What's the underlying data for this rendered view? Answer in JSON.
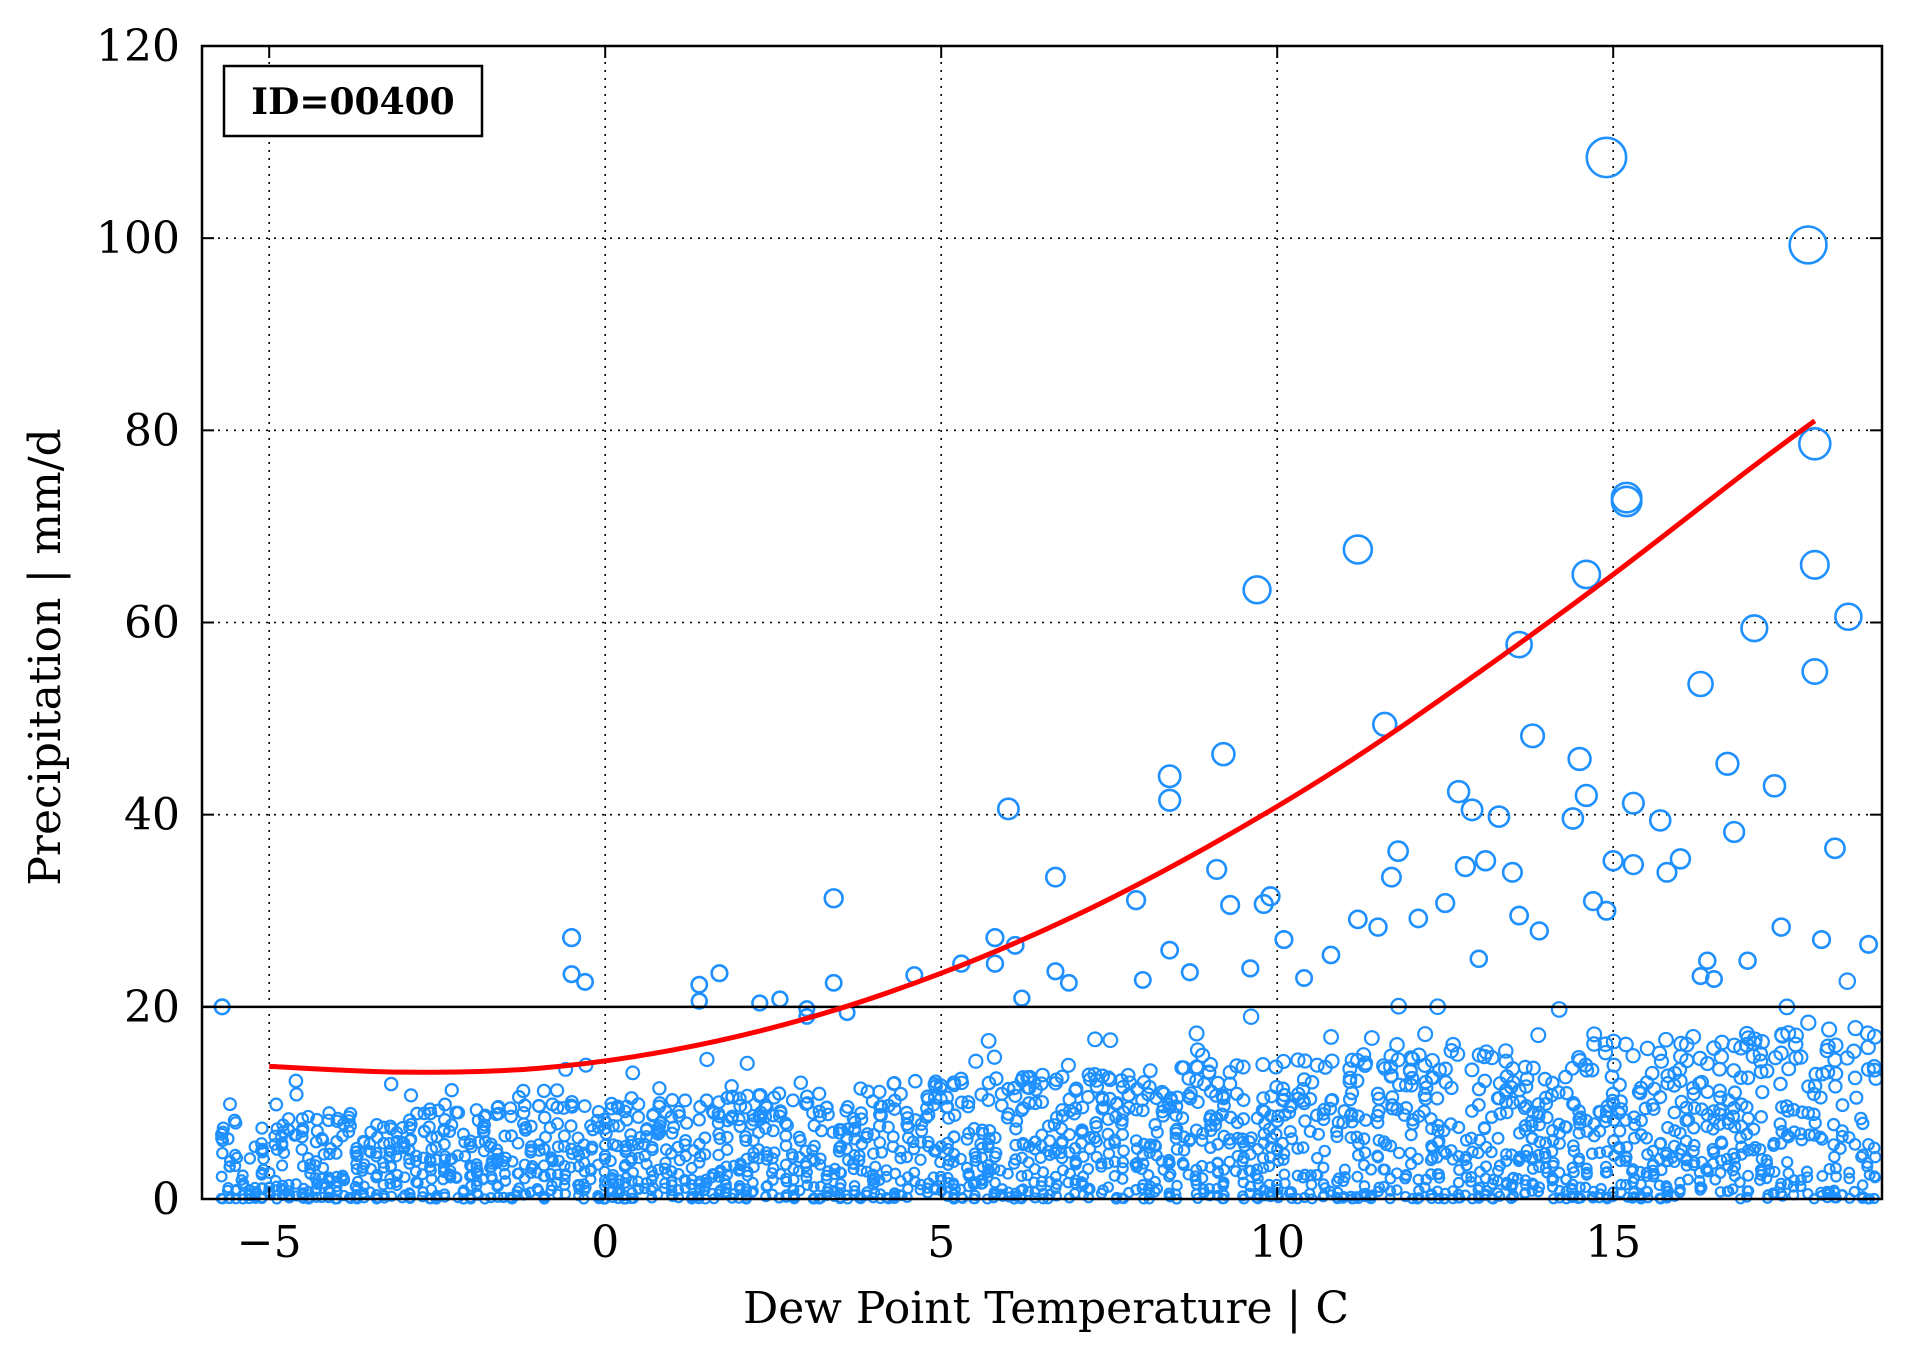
{
  "chart_data": {
    "type": "scatter",
    "title": "",
    "xlabel": "Dew Point Temperature | C",
    "ylabel": "Precipitation | mm/d",
    "xlim": [
      -6,
      19
    ],
    "ylim": [
      0,
      120
    ],
    "xticks": [
      -5,
      0,
      5,
      10,
      15
    ],
    "yticks": [
      0,
      20,
      40,
      60,
      80,
      100,
      120
    ],
    "xtick_labels": [
      "−5",
      "0",
      "5",
      "10",
      "15"
    ],
    "ytick_labels": [
      "0",
      "20",
      "40",
      "60",
      "80",
      "100",
      "120"
    ],
    "grid": true,
    "annotation": "ID=00400",
    "annotation_position": "top-left",
    "threshold_line": {
      "y": 20,
      "color": "#000000"
    },
    "marker_color": "#1e90ff",
    "fit_color": "#ff0000",
    "fit_curve": {
      "x": [
        -5,
        -3,
        -1,
        1,
        3,
        5,
        7,
        9,
        11,
        13,
        15,
        17,
        18
      ],
      "y": [
        13.8,
        13.2,
        13.6,
        15.5,
        18.8,
        23.5,
        29.5,
        36.8,
        45.2,
        54.8,
        65.0,
        75.8,
        81.0
      ]
    },
    "points": {
      "x": [
        -5.7,
        -0.5,
        -0.5,
        -0.3,
        1.4,
        1.4,
        1.7,
        2.3,
        2.6,
        3.0,
        3.0,
        3.4,
        3.4,
        3.6,
        4.6,
        5.3,
        5.8,
        5.8,
        6.0,
        6.1,
        6.2,
        6.7,
        6.7,
        6.9,
        7.9,
        8.0,
        8.4,
        8.4,
        8.4,
        8.7,
        9.1,
        9.2,
        9.3,
        9.6,
        9.7,
        9.8,
        9.9,
        10.1,
        10.4,
        10.8,
        11.2,
        11.2,
        11.5,
        11.6,
        11.7,
        11.8,
        12.1,
        12.5,
        12.7,
        12.8,
        12.9,
        13.0,
        13.1,
        13.3,
        13.5,
        13.6,
        13.6,
        13.8,
        13.9,
        14.4,
        14.5,
        14.6,
        14.6,
        14.7,
        14.9,
        14.9,
        15.0,
        15.2,
        15.2,
        15.3,
        15.3,
        15.7,
        15.8,
        16.0,
        16.3,
        16.3,
        16.4,
        16.5,
        16.7,
        16.8,
        17.0,
        17.1,
        17.4,
        17.5,
        17.9,
        18.0,
        18.0,
        18.0,
        18.1,
        18.3,
        18.5,
        18.8
      ],
      "y": [
        20.0,
        27.2,
        23.4,
        22.6,
        22.3,
        20.6,
        23.5,
        20.4,
        20.8,
        19.8,
        19.0,
        31.3,
        22.5,
        19.4,
        23.3,
        24.5,
        27.2,
        24.5,
        40.6,
        26.4,
        20.9,
        33.5,
        23.7,
        22.5,
        31.1,
        22.8,
        44.0,
        41.5,
        25.9,
        23.6,
        34.3,
        46.3,
        30.6,
        24.0,
        63.4,
        30.7,
        31.5,
        27.0,
        23.0,
        25.4,
        67.6,
        29.1,
        28.3,
        49.4,
        33.5,
        36.2,
        29.2,
        30.8,
        42.4,
        34.6,
        40.5,
        25.0,
        35.2,
        39.8,
        34.0,
        57.7,
        29.5,
        48.2,
        27.9,
        39.6,
        45.8,
        42.0,
        65.0,
        31.0,
        108.4,
        30.0,
        35.2,
        73.0,
        72.6,
        34.8,
        41.2,
        39.4,
        34.0,
        35.4,
        53.6,
        23.2,
        24.8,
        22.9,
        45.3,
        38.2,
        24.8,
        59.4,
        43.0,
        28.3,
        99.3,
        78.6,
        66.0,
        54.9,
        27.0,
        36.5,
        60.6,
        26.5
      ]
    }
  }
}
